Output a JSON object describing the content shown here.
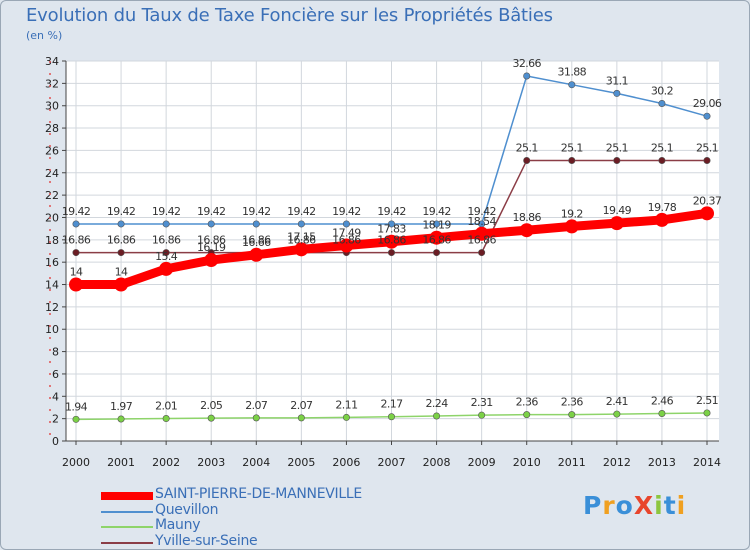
{
  "chart_data": {
    "type": "line",
    "title": "Evolution du Taux de Taxe Foncière sur les Propriétés Bâties",
    "ylabel": "(en %)",
    "xlabel": "",
    "x": [
      "2000",
      "2001",
      "2002",
      "2003",
      "2004",
      "2005",
      "2006",
      "2007",
      "2008",
      "2009",
      "2010",
      "2011",
      "2012",
      "2013",
      "2014"
    ],
    "ylim": [
      0,
      34
    ],
    "yticks": [
      0,
      2,
      4,
      6,
      8,
      10,
      12,
      14,
      16,
      18,
      20,
      22,
      24,
      26,
      28,
      30,
      32,
      34
    ],
    "grid": true,
    "series": [
      {
        "name": "SAINT-PIERRE-DE-MANNEVILLE",
        "color": "#ff0000",
        "highlight": true,
        "values": [
          14,
          14,
          15.4,
          16.19,
          16.66,
          17.15,
          17.49,
          17.83,
          18.19,
          18.54,
          18.86,
          19.2,
          19.49,
          19.78,
          20.37
        ],
        "labels": [
          "14",
          "14",
          "15.4",
          "16.19",
          "16.66",
          "17.15",
          "17.49",
          "17.83",
          "18.19",
          "18.54",
          "18.86",
          "19.2",
          "19.49",
          "19.78",
          "20.37"
        ]
      },
      {
        "name": "Quevillon",
        "color": "#4f8fcf",
        "marker": "#4f8fcf",
        "values": [
          19.42,
          19.42,
          19.42,
          19.42,
          19.42,
          19.42,
          19.42,
          19.42,
          19.42,
          19.42,
          32.66,
          31.88,
          31.1,
          30.2,
          29.06
        ],
        "labels": [
          "19.42",
          "19.42",
          "19.42",
          "19.42",
          "19.42",
          "19.42",
          "19.42",
          "19.42",
          "19.42",
          "19.42",
          "32.66",
          "31.88",
          "31.1",
          "30.2",
          "29.06"
        ]
      },
      {
        "name": "Mauny",
        "color": "#8ed46a",
        "marker": "#7bd146",
        "values": [
          1.94,
          1.97,
          2.01,
          2.05,
          2.07,
          2.07,
          2.11,
          2.17,
          2.24,
          2.31,
          2.36,
          2.36,
          2.41,
          2.46,
          2.51
        ],
        "labels": [
          "1.94",
          "1.97",
          "2.01",
          "2.05",
          "2.07",
          "2.07",
          "2.11",
          "2.17",
          "2.24",
          "2.31",
          "2.36",
          "2.36",
          "2.41",
          "2.46",
          "2.51"
        ]
      },
      {
        "name": "Yville-sur-Seine",
        "color": "#8b3d46",
        "marker": "#6b1d24",
        "values": [
          16.86,
          16.86,
          16.86,
          16.86,
          16.86,
          16.86,
          16.86,
          16.86,
          16.86,
          16.86,
          25.1,
          25.1,
          25.1,
          25.1,
          25.1
        ],
        "labels": [
          "16.86",
          "16.86",
          "16.86",
          "16.86",
          "16.86",
          "16.86",
          "16.86",
          "16.86",
          "16.86",
          "16.86",
          "25.1",
          "25.1",
          "25.1",
          "25.1",
          "25.1"
        ]
      }
    ]
  },
  "brand": {
    "text": "ProXiti"
  }
}
